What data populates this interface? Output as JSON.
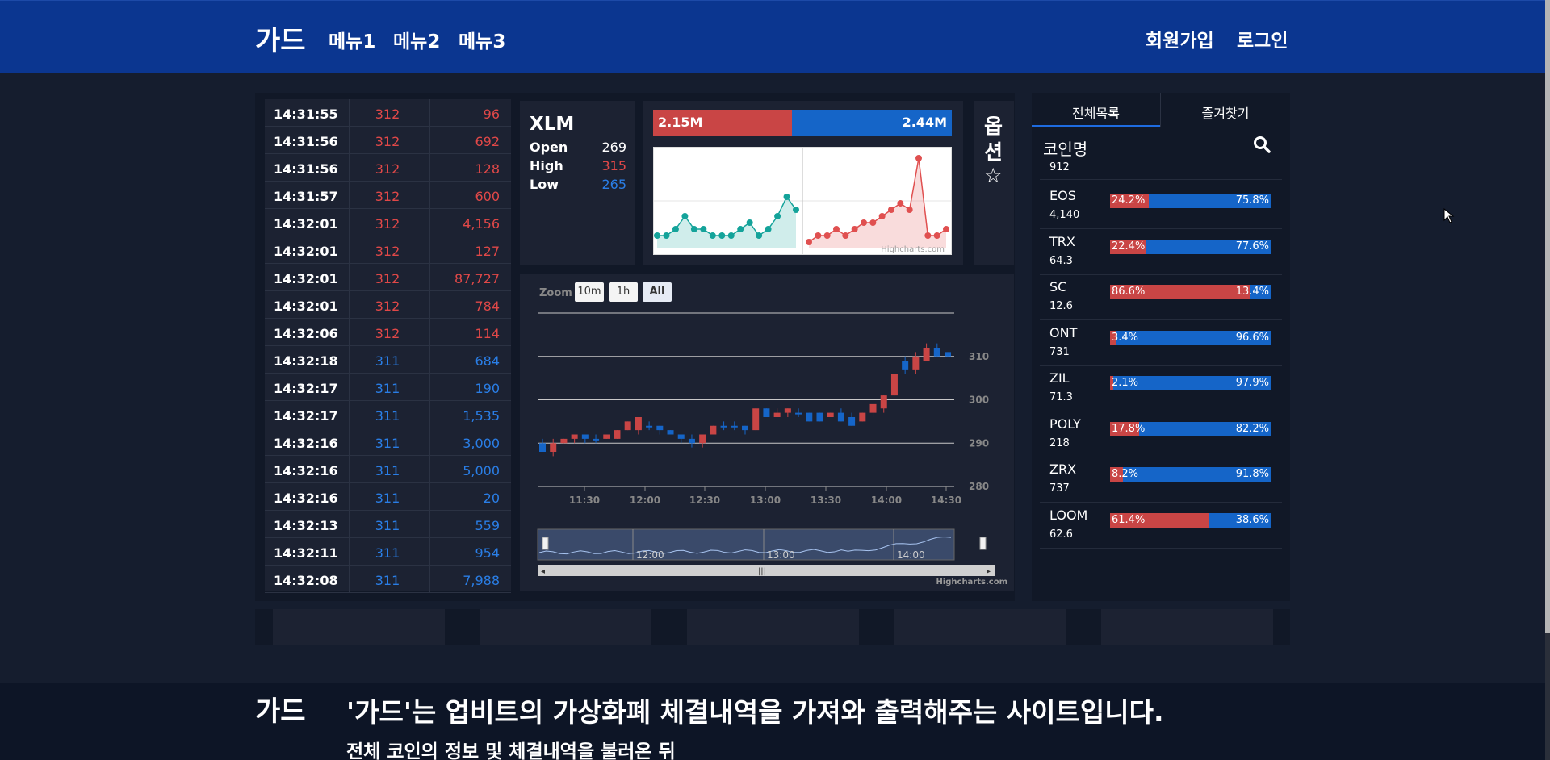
{
  "header": {
    "brand": "가드",
    "menus": [
      "메뉴1",
      "메뉴2",
      "메뉴3"
    ],
    "signup": "회원가입",
    "login": "로그인"
  },
  "trades": [
    {
      "time": "14:31:55",
      "price": "312",
      "volume": "96",
      "side": "red"
    },
    {
      "time": "14:31:56",
      "price": "312",
      "volume": "692",
      "side": "red"
    },
    {
      "time": "14:31:56",
      "price": "312",
      "volume": "128",
      "side": "red"
    },
    {
      "time": "14:31:57",
      "price": "312",
      "volume": "600",
      "side": "red"
    },
    {
      "time": "14:32:01",
      "price": "312",
      "volume": "4,156",
      "side": "red"
    },
    {
      "time": "14:32:01",
      "price": "312",
      "volume": "127",
      "side": "red"
    },
    {
      "time": "14:32:01",
      "price": "312",
      "volume": "87,727",
      "side": "red"
    },
    {
      "time": "14:32:01",
      "price": "312",
      "volume": "784",
      "side": "red"
    },
    {
      "time": "14:32:06",
      "price": "312",
      "volume": "114",
      "side": "red"
    },
    {
      "time": "14:32:18",
      "price": "311",
      "volume": "684",
      "side": "blue"
    },
    {
      "time": "14:32:17",
      "price": "311",
      "volume": "190",
      "side": "blue"
    },
    {
      "time": "14:32:17",
      "price": "311",
      "volume": "1,535",
      "side": "blue"
    },
    {
      "time": "14:32:16",
      "price": "311",
      "volume": "3,000",
      "side": "blue"
    },
    {
      "time": "14:32:16",
      "price": "311",
      "volume": "5,000",
      "side": "blue"
    },
    {
      "time": "14:32:16",
      "price": "311",
      "volume": "20",
      "side": "blue"
    },
    {
      "time": "14:32:13",
      "price": "311",
      "volume": "559",
      "side": "blue"
    },
    {
      "time": "14:32:11",
      "price": "311",
      "volume": "954",
      "side": "blue"
    },
    {
      "time": "14:32:08",
      "price": "311",
      "volume": "7,988",
      "side": "blue"
    }
  ],
  "coin_info": {
    "symbol": "XLM",
    "open_label": "Open",
    "open": "269",
    "high_label": "High",
    "high": "315",
    "low_label": "Low",
    "low": "265"
  },
  "ratio": {
    "sell": "2.15M",
    "buy": "2.44M",
    "sell_fraction": 0.468,
    "credit": "Highcharts.com"
  },
  "options": {
    "line1": "옵",
    "line2": "션",
    "star_icon": "star-icon"
  },
  "chart": {
    "zoom_label": "Zoom",
    "buttons": [
      "10m",
      "1h",
      "All"
    ],
    "selected": "All",
    "credit": "Highcharts.com",
    "navigator_labels": [
      "12:00",
      "13:00",
      "14:00"
    ]
  },
  "chart_data": {
    "type": "candlestick",
    "x_ticks": [
      "11:30",
      "12:00",
      "12:30",
      "13:00",
      "13:30",
      "14:00",
      "14:30"
    ],
    "y_ticks": [
      280,
      290,
      300,
      310
    ],
    "ylim": [
      280,
      320
    ],
    "candles": [
      {
        "o": 290,
        "c": 288,
        "h": 291,
        "l": 288,
        "up": false
      },
      {
        "o": 290,
        "c": 288,
        "h": 291,
        "l": 287,
        "up": true
      },
      {
        "o": 290,
        "c": 291,
        "h": 291,
        "l": 290,
        "up": true
      },
      {
        "o": 291,
        "c": 292,
        "h": 292,
        "l": 290,
        "up": true
      },
      {
        "o": 292,
        "c": 291,
        "h": 292,
        "l": 290,
        "up": false
      },
      {
        "o": 291,
        "c": 291,
        "h": 292,
        "l": 290,
        "up": false
      },
      {
        "o": 291,
        "c": 292,
        "h": 292,
        "l": 291,
        "up": true
      },
      {
        "o": 291,
        "c": 293,
        "h": 293,
        "l": 291,
        "up": true
      },
      {
        "o": 293,
        "c": 295,
        "h": 295,
        "l": 293,
        "up": true
      },
      {
        "o": 293,
        "c": 296,
        "h": 296,
        "l": 292,
        "up": true
      },
      {
        "o": 294,
        "c": 294,
        "h": 295,
        "l": 293,
        "up": false
      },
      {
        "o": 294,
        "c": 293,
        "h": 294,
        "l": 292,
        "up": false
      },
      {
        "o": 293,
        "c": 292,
        "h": 293,
        "l": 292,
        "up": false
      },
      {
        "o": 292,
        "c": 291,
        "h": 292,
        "l": 290,
        "up": false
      },
      {
        "o": 291,
        "c": 290,
        "h": 292,
        "l": 289,
        "up": false
      },
      {
        "o": 290,
        "c": 292,
        "h": 292,
        "l": 289,
        "up": true
      },
      {
        "o": 292,
        "c": 294,
        "h": 294,
        "l": 292,
        "up": true
      },
      {
        "o": 294,
        "c": 294,
        "h": 295,
        "l": 293,
        "up": false
      },
      {
        "o": 294,
        "c": 294,
        "h": 295,
        "l": 293,
        "up": false
      },
      {
        "o": 294,
        "c": 293,
        "h": 294,
        "l": 292,
        "up": false
      },
      {
        "o": 293,
        "c": 298,
        "h": 298,
        "l": 293,
        "up": true
      },
      {
        "o": 298,
        "c": 296,
        "h": 298,
        "l": 296,
        "up": false
      },
      {
        "o": 296,
        "c": 297,
        "h": 298,
        "l": 296,
        "up": true
      },
      {
        "o": 297,
        "c": 298,
        "h": 298,
        "l": 296,
        "up": true
      },
      {
        "o": 297,
        "c": 297,
        "h": 298,
        "l": 296,
        "up": false
      },
      {
        "o": 297,
        "c": 295,
        "h": 297,
        "l": 295,
        "up": false
      },
      {
        "o": 297,
        "c": 295,
        "h": 297,
        "l": 295,
        "up": false
      },
      {
        "o": 296,
        "c": 297,
        "h": 297,
        "l": 296,
        "up": true
      },
      {
        "o": 297,
        "c": 295,
        "h": 298,
        "l": 295,
        "up": false
      },
      {
        "o": 296,
        "c": 294,
        "h": 297,
        "l": 294,
        "up": false
      },
      {
        "o": 295,
        "c": 297,
        "h": 297,
        "l": 295,
        "up": true
      },
      {
        "o": 297,
        "c": 299,
        "h": 299,
        "l": 296,
        "up": true
      },
      {
        "o": 298,
        "c": 301,
        "h": 301,
        "l": 297,
        "up": true
      },
      {
        "o": 301,
        "c": 306,
        "h": 306,
        "l": 301,
        "up": true
      },
      {
        "o": 307,
        "c": 309,
        "h": 310,
        "l": 306,
        "up": false
      },
      {
        "o": 307,
        "c": 310,
        "h": 311,
        "l": 306,
        "up": true
      },
      {
        "o": 309,
        "c": 312,
        "h": 313,
        "l": 309,
        "up": true
      },
      {
        "o": 312,
        "c": 310,
        "h": 313,
        "l": 310,
        "up": false
      },
      {
        "o": 311,
        "c": 310,
        "h": 311,
        "l": 310,
        "up": false
      }
    ]
  },
  "mini_chart_data": {
    "type": "area",
    "buy": [
      2,
      2,
      3,
      5,
      3,
      3,
      2,
      2,
      2,
      3,
      4,
      2,
      3,
      5,
      8,
      6
    ],
    "sell": [
      1,
      2,
      2,
      3,
      2,
      3,
      4,
      4,
      5,
      6,
      7,
      6,
      14,
      2,
      2,
      3
    ]
  },
  "coins_panel": {
    "tab_all": "전체목록",
    "tab_fav": "즐겨찾기",
    "column": "코인명",
    "search_icon": "search-icon",
    "first_price": "912",
    "coins": [
      {
        "name": "EOS",
        "price": "4,140",
        "sell_pct": "24.2%",
        "buy_pct": "75.8%",
        "sell": 0.242
      },
      {
        "name": "TRX",
        "price": "64.3",
        "sell_pct": "22.4%",
        "buy_pct": "77.6%",
        "sell": 0.224
      },
      {
        "name": "SC",
        "price": "12.6",
        "sell_pct": "86.6%",
        "buy_pct": "13.4%",
        "sell": 0.866
      },
      {
        "name": "ONT",
        "price": "731",
        "sell_pct": "3.4%",
        "buy_pct": "96.6%",
        "sell": 0.034
      },
      {
        "name": "ZIL",
        "price": "71.3",
        "sell_pct": "2.1%",
        "buy_pct": "97.9%",
        "sell": 0.021
      },
      {
        "name": "POLY",
        "price": "218",
        "sell_pct": "17.8%",
        "buy_pct": "82.2%",
        "sell": 0.178
      },
      {
        "name": "ZRX",
        "price": "737",
        "sell_pct": "8.2%",
        "buy_pct": "91.8%",
        "sell": 0.082
      },
      {
        "name": "LOOM",
        "price": "62.6",
        "sell_pct": "61.4%",
        "buy_pct": "38.6%",
        "sell": 0.614
      }
    ]
  },
  "footer": {
    "brand": "가드",
    "title": "'가드'는 업비트의 가상화폐 체결내역을 가져와 출력해주는 사이트입니다.",
    "subtitle": "전체 코인의 정보 및 체결내역을 불러온 뒤"
  },
  "colors": {
    "up": "#c94545",
    "down": "#1565c8",
    "header": "#0b3690"
  }
}
